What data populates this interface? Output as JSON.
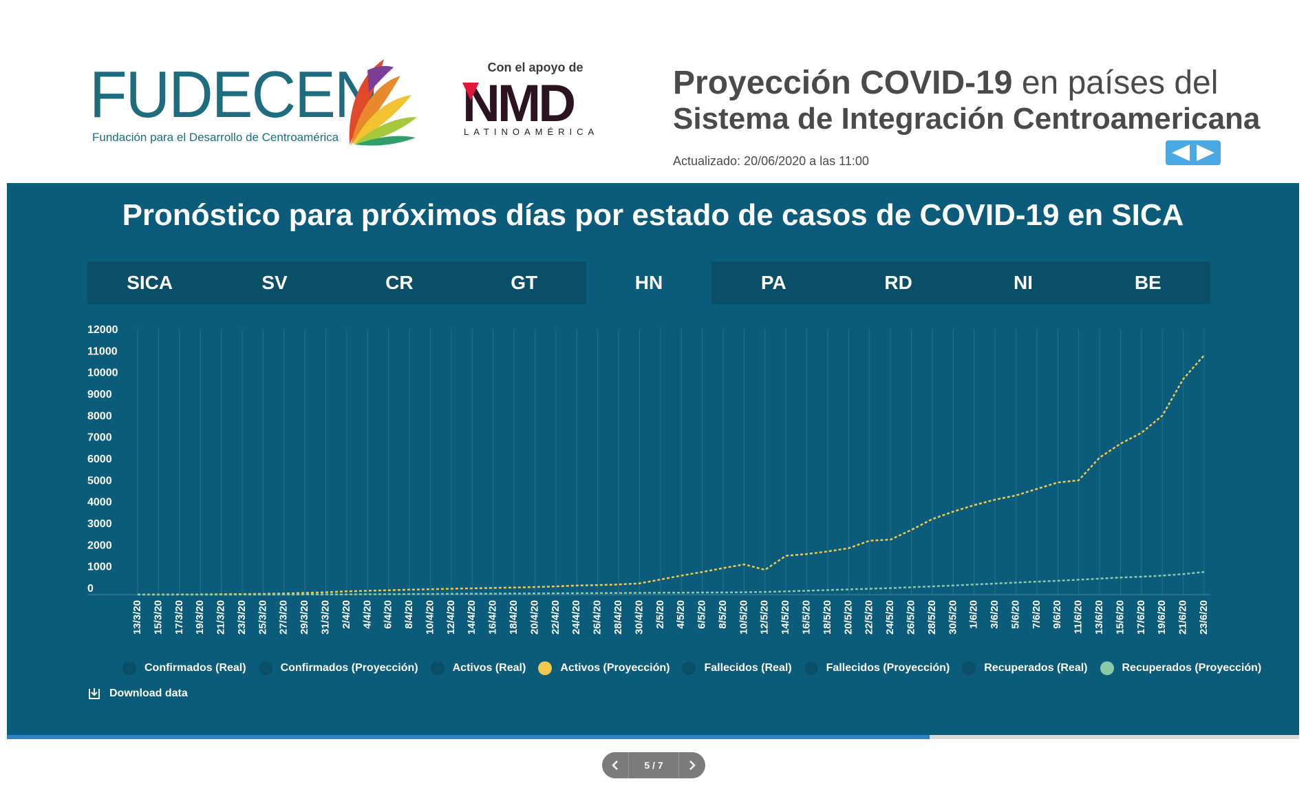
{
  "header": {
    "logo_text": "FUDECEN",
    "logo_tagline": "Fundación para el Desarrollo de Centroamérica",
    "support_text": "Con el apoyo de",
    "nmd_logo": "NMD",
    "nmd_sub": "LATINOAMÉRICA",
    "headline_bold": "Proyección COVID-19",
    "headline_rest": " en países del",
    "headline_line2": "Sistema de Integración Centroamericana",
    "updated": "Actualizado: 20/06/2020 a las 11:00",
    "nav_icons": [
      "left-triangle-icon",
      "right-triangle-icon"
    ],
    "nav_color": "#4aa9e3"
  },
  "panel": {
    "title": "Pronóstico para próximos días por estado de casos de COVID-19 en SICA",
    "background": "#0b5c7a",
    "tabs": [
      "SICA",
      "SV",
      "CR",
      "GT",
      "HN",
      "PA",
      "RD",
      "NI",
      "BE"
    ],
    "active_tab": "HN",
    "download_label": "Download data"
  },
  "chart_data": {
    "type": "line",
    "title": "",
    "xlabel": "",
    "ylabel": "",
    "ylim": [
      0,
      12000
    ],
    "yticks": [
      0,
      1000,
      2000,
      3000,
      4000,
      5000,
      6000,
      7000,
      8000,
      9000,
      10000,
      11000,
      12000
    ],
    "x_labels": [
      "13/3/20",
      "15/3/20",
      "17/3/20",
      "19/3/20",
      "21/3/20",
      "23/3/20",
      "25/3/20",
      "27/3/20",
      "29/3/20",
      "31/3/20",
      "2/4/20",
      "4/4/20",
      "6/4/20",
      "8/4/20",
      "10/4/20",
      "12/4/20",
      "14/4/20",
      "16/4/20",
      "18/4/20",
      "20/4/20",
      "22/4/20",
      "24/4/20",
      "26/4/20",
      "28/4/20",
      "30/4/20",
      "2/5/20",
      "4/5/20",
      "6/5/20",
      "8/5/20",
      "10/5/20",
      "12/5/20",
      "14/5/20",
      "16/5/20",
      "18/5/20",
      "20/5/20",
      "22/5/20",
      "24/5/20",
      "26/5/20",
      "28/5/20",
      "30/5/20",
      "1/6/20",
      "3/6/20",
      "5/6/20",
      "7/6/20",
      "9/6/20",
      "11/6/20",
      "13/6/20",
      "15/6/20",
      "17/6/20",
      "19/6/20",
      "21/6/20",
      "23/6/20"
    ],
    "grid": true,
    "legend_position": "bottom",
    "legend": [
      {
        "name": "Confirmados (Real)",
        "color": "#0a4e68"
      },
      {
        "name": "Confirmados (Proyección)",
        "color": "#0a4e68"
      },
      {
        "name": "Activos (Real)",
        "color": "#0a4e68"
      },
      {
        "name": "Activos (Proyección)",
        "color": "#f2c94c"
      },
      {
        "name": "Fallecidos (Real)",
        "color": "#0a4e68"
      },
      {
        "name": "Fallecidos (Proyección)",
        "color": "#0a4e68"
      },
      {
        "name": "Recuperados (Real)",
        "color": "#0a4e68"
      },
      {
        "name": "Recuperados (Proyección)",
        "color": "#8cc9a6"
      }
    ],
    "series": [
      {
        "name": "Activos (Proyección)",
        "color": "#f2c94c",
        "values": [
          2,
          3,
          5,
          10,
          20,
          25,
          35,
          50,
          80,
          110,
          150,
          180,
          200,
          230,
          250,
          270,
          290,
          310,
          330,
          350,
          380,
          420,
          440,
          470,
          520,
          700,
          880,
          1050,
          1230,
          1400,
          1150,
          1800,
          1880,
          2000,
          2150,
          2500,
          2550,
          3000,
          3500,
          3850,
          4150,
          4400,
          4600,
          4900,
          5200,
          5300,
          6350,
          7000,
          7500,
          8300,
          10000,
          11100
        ]
      },
      {
        "name": "Recuperados (Proyección)",
        "color": "#8cc9a6",
        "values": [
          0,
          0,
          0,
          0,
          1,
          2,
          3,
          4,
          5,
          8,
          10,
          15,
          20,
          25,
          30,
          35,
          40,
          45,
          50,
          55,
          60,
          65,
          70,
          75,
          80,
          85,
          90,
          95,
          100,
          110,
          125,
          150,
          180,
          210,
          240,
          270,
          300,
          340,
          380,
          420,
          470,
          510,
          560,
          600,
          640,
          690,
          740,
          790,
          830,
          880,
          950,
          1050
        ]
      }
    ]
  },
  "pager": {
    "label": "5 / 7",
    "progress_fraction": 0.714
  }
}
